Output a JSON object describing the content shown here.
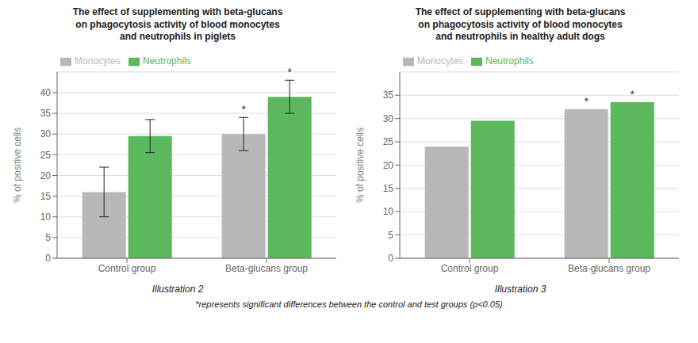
{
  "chart_data": [
    {
      "type": "bar",
      "title": "The effect of supplementing with beta-glucans\non phagocytosis activity of blood monocytes\nand neutrophils in piglets",
      "categories": [
        "Control group",
        "Beta-glucans group"
      ],
      "series": [
        {
          "name": "Monocytes",
          "color": "#b8b8b8",
          "values": [
            16,
            30
          ],
          "errors": [
            6,
            4
          ]
        },
        {
          "name": "Neutrophils",
          "color": "#5cb85c",
          "values": [
            29.5,
            39
          ],
          "errors": [
            4,
            4
          ]
        }
      ],
      "ylabel": "% of positive cells",
      "ylim": [
        0,
        45
      ],
      "yticks": [
        0,
        5,
        10,
        15,
        20,
        25,
        30,
        35,
        40
      ],
      "grid": true,
      "legend": "upper left",
      "caption": "Illustration 2",
      "annotations": [
        {
          "category": "Beta-glucans group",
          "series": "Monocytes",
          "text": "*"
        },
        {
          "category": "Beta-glucans group",
          "series": "Neutrophils",
          "text": "*"
        }
      ]
    },
    {
      "type": "bar",
      "title": "The effect of supplementing with beta-glucans\non phagocytosis activity of blood monocytes\nand neutrophils in healthy adult dogs",
      "categories": [
        "Control group",
        "Beta-glucans group"
      ],
      "series": [
        {
          "name": "Monocytes",
          "color": "#b8b8b8",
          "values": [
            24,
            32
          ]
        },
        {
          "name": "Neutrophils",
          "color": "#5cb85c",
          "values": [
            29.5,
            33.5
          ]
        }
      ],
      "ylabel": "% of positive cells",
      "ylim": [
        0,
        40
      ],
      "yticks": [
        0,
        5,
        10,
        15,
        20,
        25,
        30,
        35
      ],
      "grid": true,
      "legend": "upper left",
      "caption": "Illustration 3",
      "annotations": [
        {
          "category": "Beta-glucans group",
          "series": "Monocytes",
          "text": "*"
        },
        {
          "category": "Beta-glucans group",
          "series": "Neutrophils",
          "text": "*"
        }
      ]
    }
  ],
  "footnote": "*represents significant differences between the control and test groups (p<0.05)"
}
